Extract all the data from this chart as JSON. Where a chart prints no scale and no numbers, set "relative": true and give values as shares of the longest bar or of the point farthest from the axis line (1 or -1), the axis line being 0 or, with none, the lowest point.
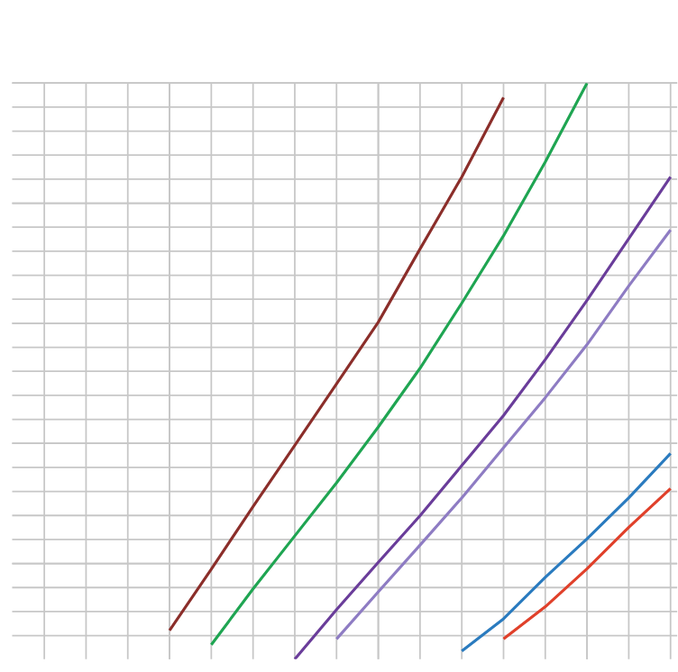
{
  "chart_data": {
    "type": "line",
    "relative": true,
    "grid": true,
    "categories": [
      null,
      null,
      null,
      null,
      null,
      null,
      null,
      null,
      null,
      null,
      null,
      null,
      null,
      null,
      null,
      null
    ],
    "series": [
      {
        "color": "#8b2e2a",
        "values": [
          null,
          null,
          null,
          0.05,
          0.156,
          0.265,
          0.371,
          0.478,
          0.585,
          0.712,
          0.837,
          0.975,
          null,
          null,
          null,
          null
        ]
      },
      {
        "color": "#1fa552",
        "values": [
          null,
          null,
          null,
          null,
          0.025,
          0.122,
          0.214,
          0.306,
          0.403,
          0.505,
          0.618,
          0.735,
          0.863,
          1.0,
          null,
          null
        ]
      },
      {
        "color": "#6a3d9a",
        "values": [
          null,
          null,
          null,
          null,
          null,
          null,
          0,
          0.086,
          0.168,
          0.249,
          0.336,
          0.423,
          0.52,
          0.623,
          0.73,
          0.837
        ]
      },
      {
        "color": "#8e7cc3",
        "values": [
          null,
          null,
          null,
          null,
          null,
          null,
          null,
          0.035,
          0.117,
          0.198,
          0.28,
          0.367,
          0.454,
          0.546,
          0.648,
          0.745
        ]
      },
      {
        "color": "#2a7bbf",
        "values": [
          null,
          null,
          null,
          null,
          null,
          null,
          null,
          null,
          null,
          null,
          0.014,
          0.07,
          0.142,
          0.209,
          0.28,
          0.357
        ]
      },
      {
        "color": "#e0402a",
        "values": [
          null,
          null,
          null,
          null,
          null,
          null,
          null,
          null,
          null,
          null,
          null,
          0.035,
          0.091,
          0.157,
          0.229,
          0.296
        ]
      }
    ]
  }
}
